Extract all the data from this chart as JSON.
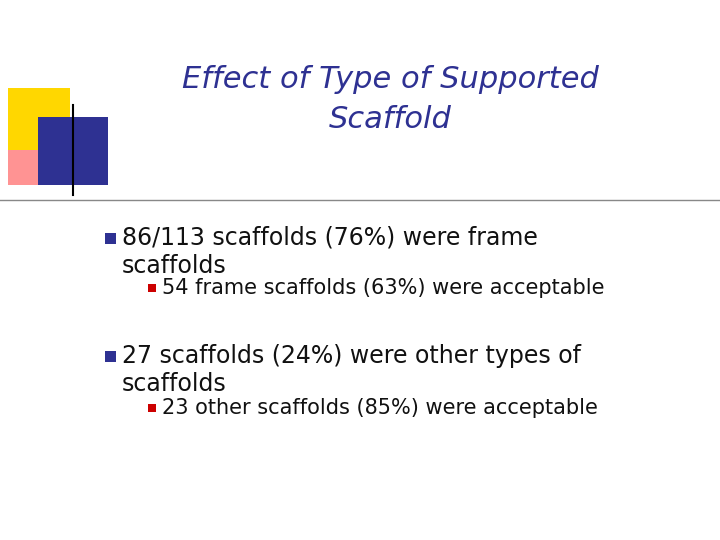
{
  "title_line1": "Effect of Type of Supported",
  "title_line2": "Scaffold",
  "title_color": "#2E3192",
  "title_fontsize": 22,
  "bg_color": "#FFFFFF",
  "bullet1_text_line1": "86/113 scaffolds (76%) were frame",
  "bullet1_text_line2": "scaffolds",
  "bullet1_marker_color": "#2E3192",
  "sub_bullet1_text": "54 frame scaffolds (63%) were acceptable",
  "sub_bullet1_color": "#CC0000",
  "bullet2_text_line1": "27 scaffolds (24%) were other types of",
  "bullet2_text_line2": "scaffolds",
  "bullet2_marker_color": "#2E3192",
  "sub_bullet2_text": "23 other scaffolds (85%) were acceptable",
  "sub_bullet2_color": "#CC0000",
  "main_fontsize": 17,
  "sub_fontsize": 15,
  "text_color": "#111111",
  "divider_color": "#888888",
  "logo": {
    "yellow": "#FFD700",
    "blue": "#2E3192",
    "pink": "#FF8080"
  }
}
